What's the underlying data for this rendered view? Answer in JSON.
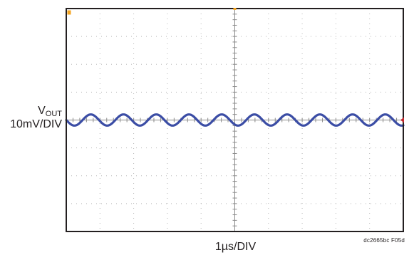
{
  "chart_data": {
    "type": "line",
    "y_label": {
      "name": "V",
      "subscript": "OUT",
      "scale": "10mV/DIV"
    },
    "x_label": "1µs/DIV",
    "figure_id": "dc2665bc F05d",
    "divisions": {
      "x": 10,
      "y": 8
    },
    "y_range_div": [
      -4,
      4
    ],
    "x_range_div": [
      0,
      10
    ],
    "grid": true,
    "series": [
      {
        "color": "#3b4da5",
        "waveform": {
          "shape": "sine",
          "cycles": 10.3,
          "amplitude_div": 0.2,
          "offset_div": 0,
          "phase_cycles": 0.5
        }
      }
    ],
    "markers": {
      "trigger_color": "#f5a623",
      "level_color": "#c1272d"
    }
  }
}
